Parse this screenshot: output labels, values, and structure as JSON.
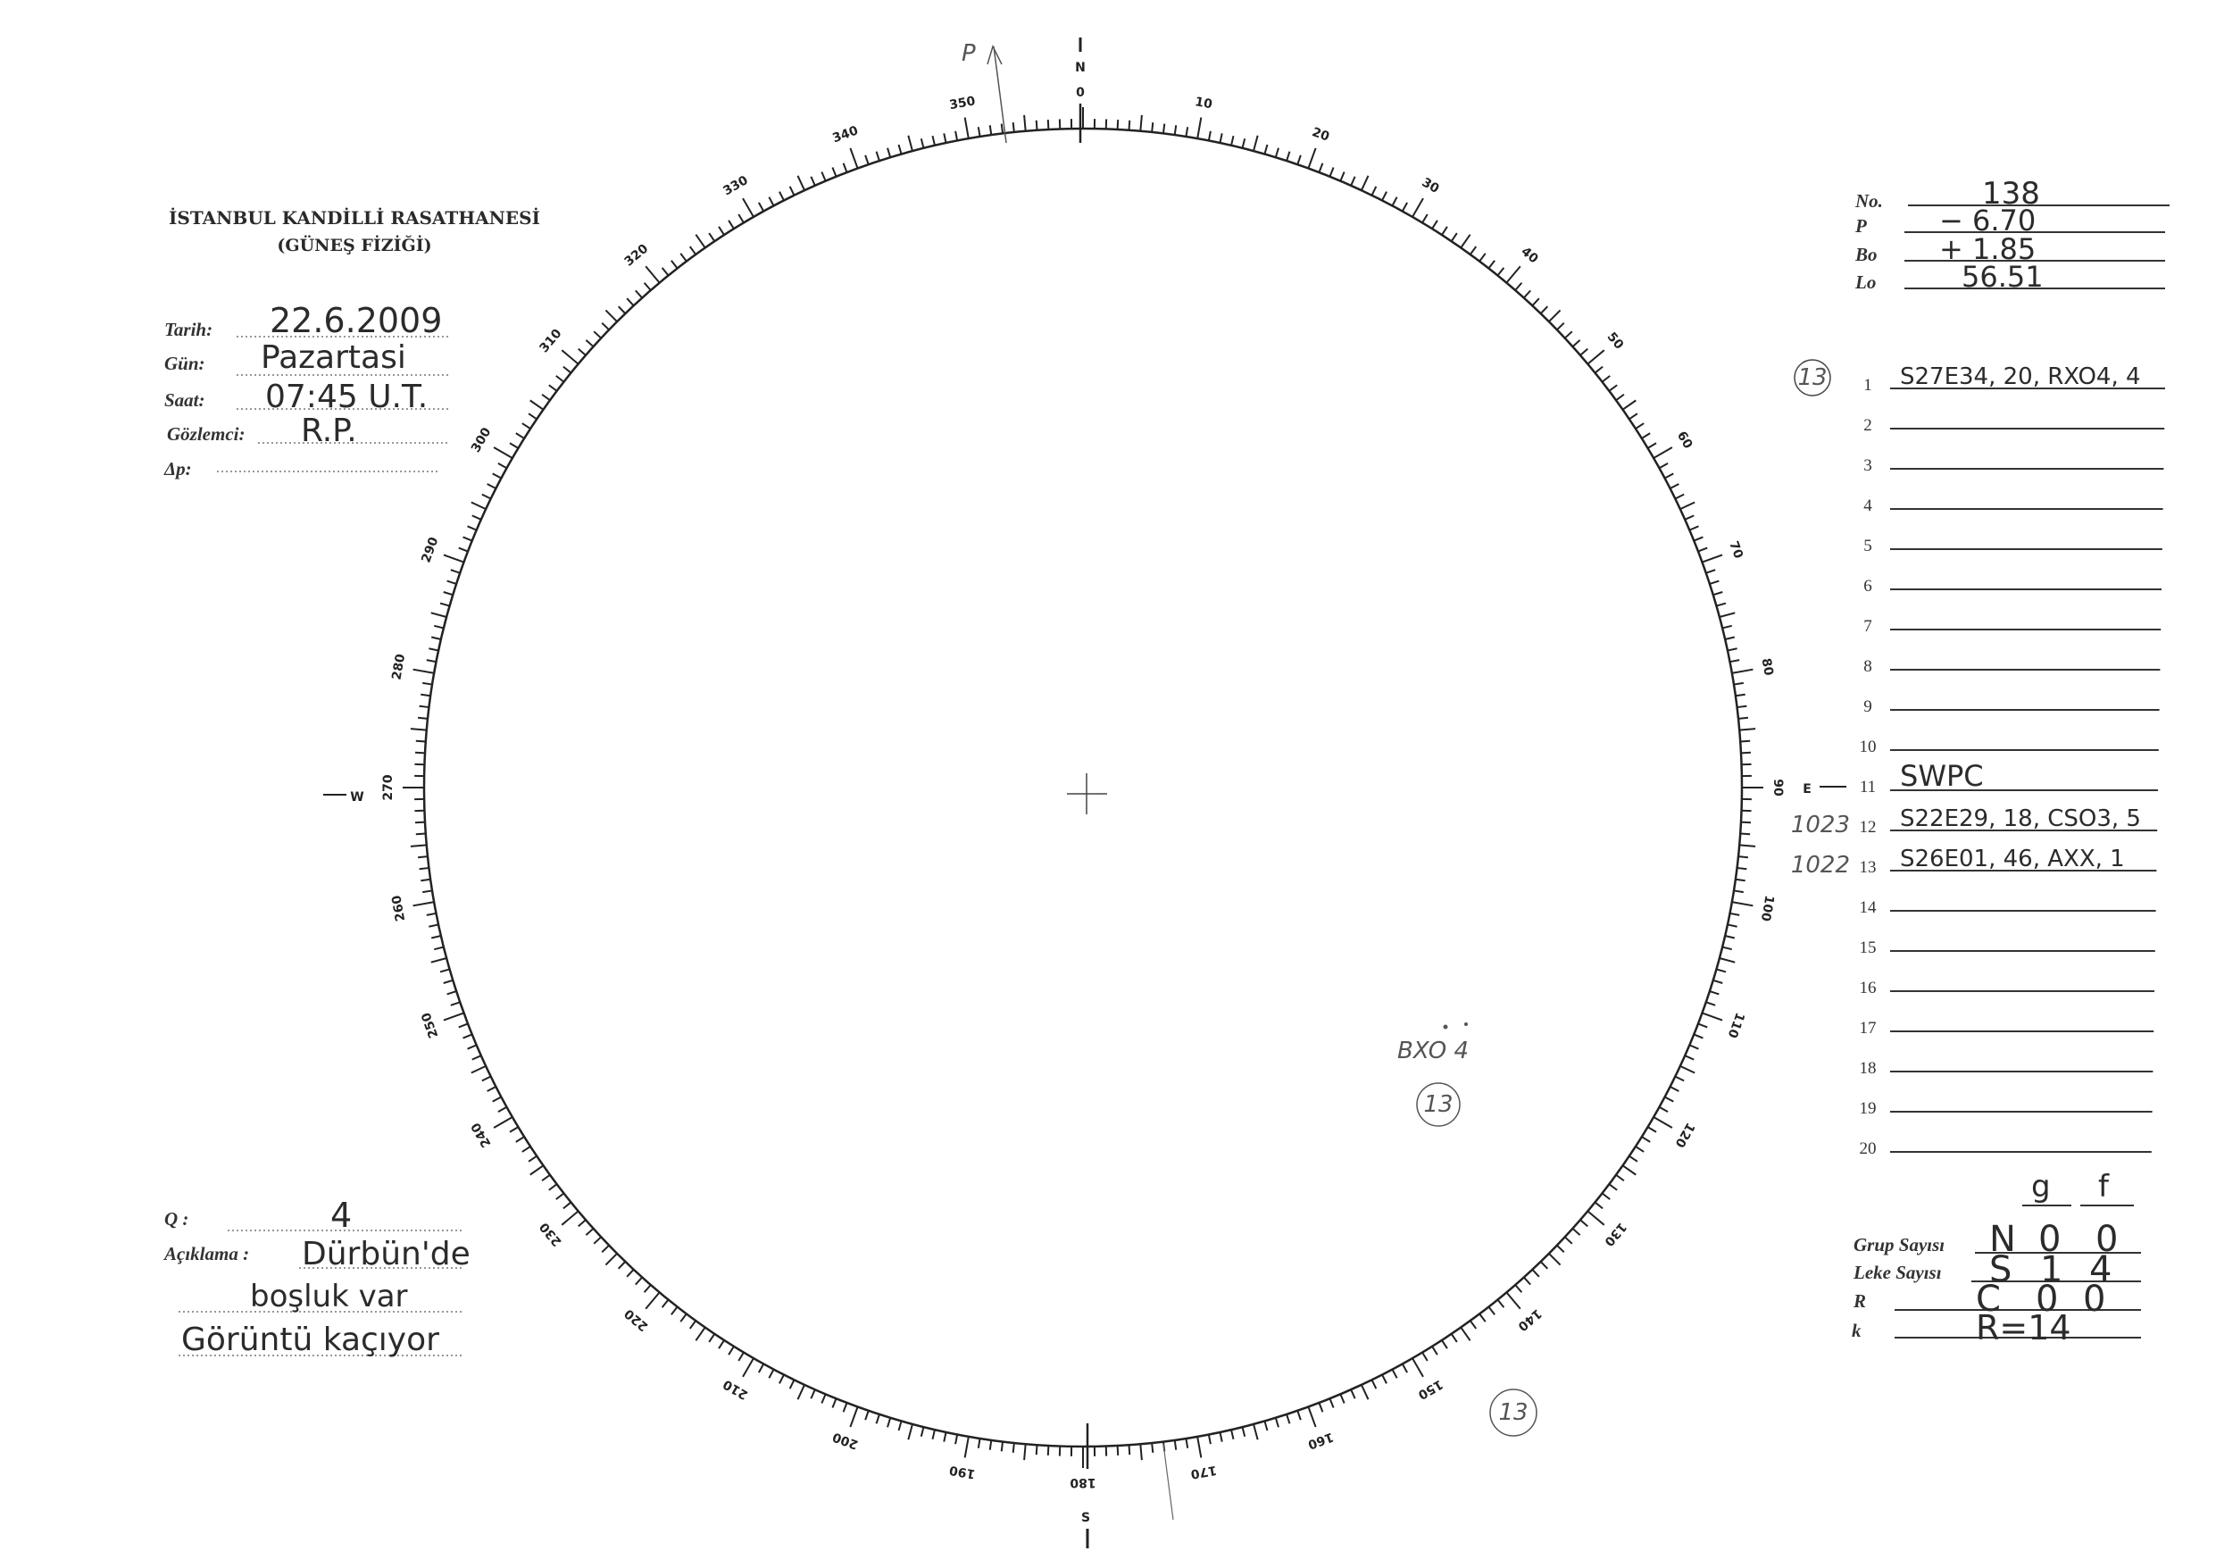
{
  "header": {
    "institution": "İSTANBUL KANDİLLİ RASATHANESİ",
    "department": "(GÜNEŞ FİZİĞİ)"
  },
  "observation": {
    "date_label": "Tarih:",
    "date_value": "22.6.2009",
    "day_label": "Gün:",
    "day_value": "Pazartasi",
    "time_label": "Saat:",
    "time_value": "07:45 U.T.",
    "observer_label": "Gözlemci:",
    "observer_value": "R.P.",
    "delta_p_label": "Δp:",
    "delta_p_value": ""
  },
  "notes": {
    "q_label": "Q :",
    "q_value": "4",
    "remark_label": "Açıklama :",
    "remark_lines": [
      "Dürbün'de",
      "boşluk var",
      "Görüntü kaçıyor"
    ]
  },
  "ephemeris": {
    "no_label": "No.",
    "no_value": "138",
    "p_label": "P",
    "p_value": "− 6.70",
    "bo_label": "Bo",
    "bo_value": "+ 1.85",
    "lo_label": "Lo",
    "lo_value": "56.51"
  },
  "groups": {
    "rows": [
      {
        "n": "1",
        "text": "S27E34, 20, RXO4, 4",
        "margin": "13",
        "margin_circled": true
      },
      {
        "n": "2",
        "text": ""
      },
      {
        "n": "3",
        "text": ""
      },
      {
        "n": "4",
        "text": ""
      },
      {
        "n": "5",
        "text": ""
      },
      {
        "n": "6",
        "text": ""
      },
      {
        "n": "7",
        "text": ""
      },
      {
        "n": "8",
        "text": ""
      },
      {
        "n": "9",
        "text": ""
      },
      {
        "n": "10",
        "text": ""
      },
      {
        "n": "11",
        "text": "SWPC"
      },
      {
        "n": "12",
        "text": "S22E29, 18, CSO3, 5",
        "margin": "1023"
      },
      {
        "n": "13",
        "text": "S26E01, 46, AXX, 1",
        "margin": "1022"
      },
      {
        "n": "14",
        "text": ""
      },
      {
        "n": "15",
        "text": ""
      },
      {
        "n": "16",
        "text": ""
      },
      {
        "n": "17",
        "text": ""
      },
      {
        "n": "18",
        "text": ""
      },
      {
        "n": "19",
        "text": ""
      },
      {
        "n": "20",
        "text": ""
      }
    ]
  },
  "counts": {
    "col_g": "g",
    "col_f": "f",
    "group_count_label": "Grup Sayısı",
    "spot_count_label": "Leke Sayısı",
    "r_label": "R",
    "k_label": "k",
    "row_n": [
      "N",
      "0",
      "0"
    ],
    "row_s": [
      "S",
      "1",
      "4"
    ],
    "row_c": [
      "C",
      "0",
      "0"
    ],
    "r_total": "R=14"
  },
  "disk": {
    "p_arrow_label": "P",
    "spot_annotation": "BXO 4",
    "circled_marks": [
      "13",
      "13"
    ],
    "cardinal": {
      "north": "N",
      "east": "E",
      "south": "S",
      "west": "W"
    },
    "zero_label": "0",
    "degree_labels": [
      "10",
      "20",
      "30",
      "40",
      "50",
      "60",
      "70",
      "80",
      "90",
      "100",
      "110",
      "120",
      "130",
      "140",
      "150",
      "160",
      "170",
      "180",
      "190",
      "200",
      "210",
      "220",
      "230",
      "240",
      "250",
      "260",
      "270",
      "280",
      "290",
      "300",
      "310",
      "320",
      "330",
      "340",
      "350"
    ]
  }
}
